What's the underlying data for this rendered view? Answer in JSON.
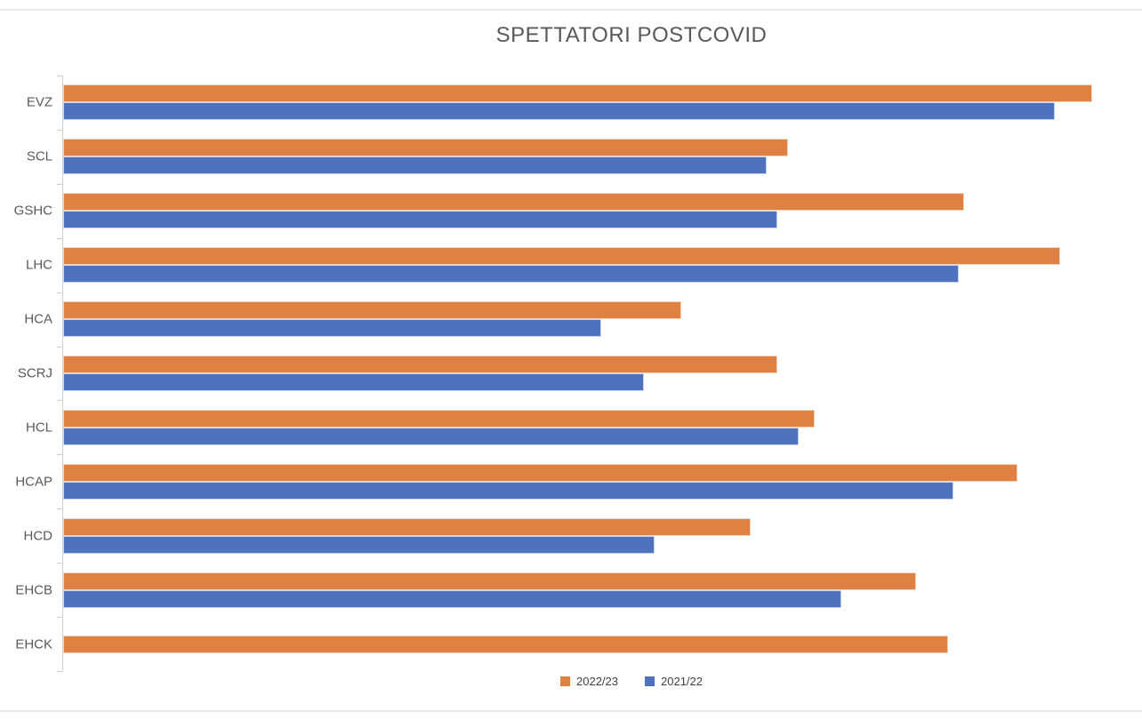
{
  "title": "SPETTATORI POSTCOVID",
  "colors": {
    "series_2022_23": "#e08144",
    "series_2022_23_border": "#f3d6be",
    "series_2021_22": "#4e72be",
    "series_2021_22_border": "#ccd6ee",
    "title_text": "#595959",
    "category_label_text": "#595959",
    "legend_text": "#404040",
    "axis_line": "#cfcfcf",
    "frame_line": "#e9e9e9",
    "background": "#ffffff"
  },
  "chart_data": {
    "type": "bar",
    "orientation": "horizontal",
    "title": "SPETTATORI POSTCOVID",
    "categories": [
      "EVZ",
      "SCL",
      "GSHC",
      "LHC",
      "HCA",
      "SCRJ",
      "HCL",
      "HCAP",
      "HCD",
      "EHCB",
      "EHCK"
    ],
    "series": [
      {
        "name": "2022/23",
        "color": "#e08144",
        "border_color": "#f3d6be",
        "values": [
          96.5,
          68,
          84.5,
          93.5,
          58,
          67,
          70.5,
          89.5,
          64.5,
          80,
          83
        ]
      },
      {
        "name": "2021/22",
        "color": "#4e72be",
        "border_color": "#ccd6ee",
        "values": [
          93,
          66,
          67,
          84,
          50.5,
          54.5,
          69,
          83.5,
          55.5,
          73,
          0
        ]
      }
    ],
    "xlim": [
      0,
      100
    ],
    "value_axis_visible": false,
    "value_note": "no value axis labels or gridlines shown; values estimated as percent of plot width",
    "grid": false,
    "legend_position": "bottom-center",
    "bar_order_per_category": [
      "2022/23 (top, orange)",
      "2021/22 (bottom, blue)"
    ]
  }
}
